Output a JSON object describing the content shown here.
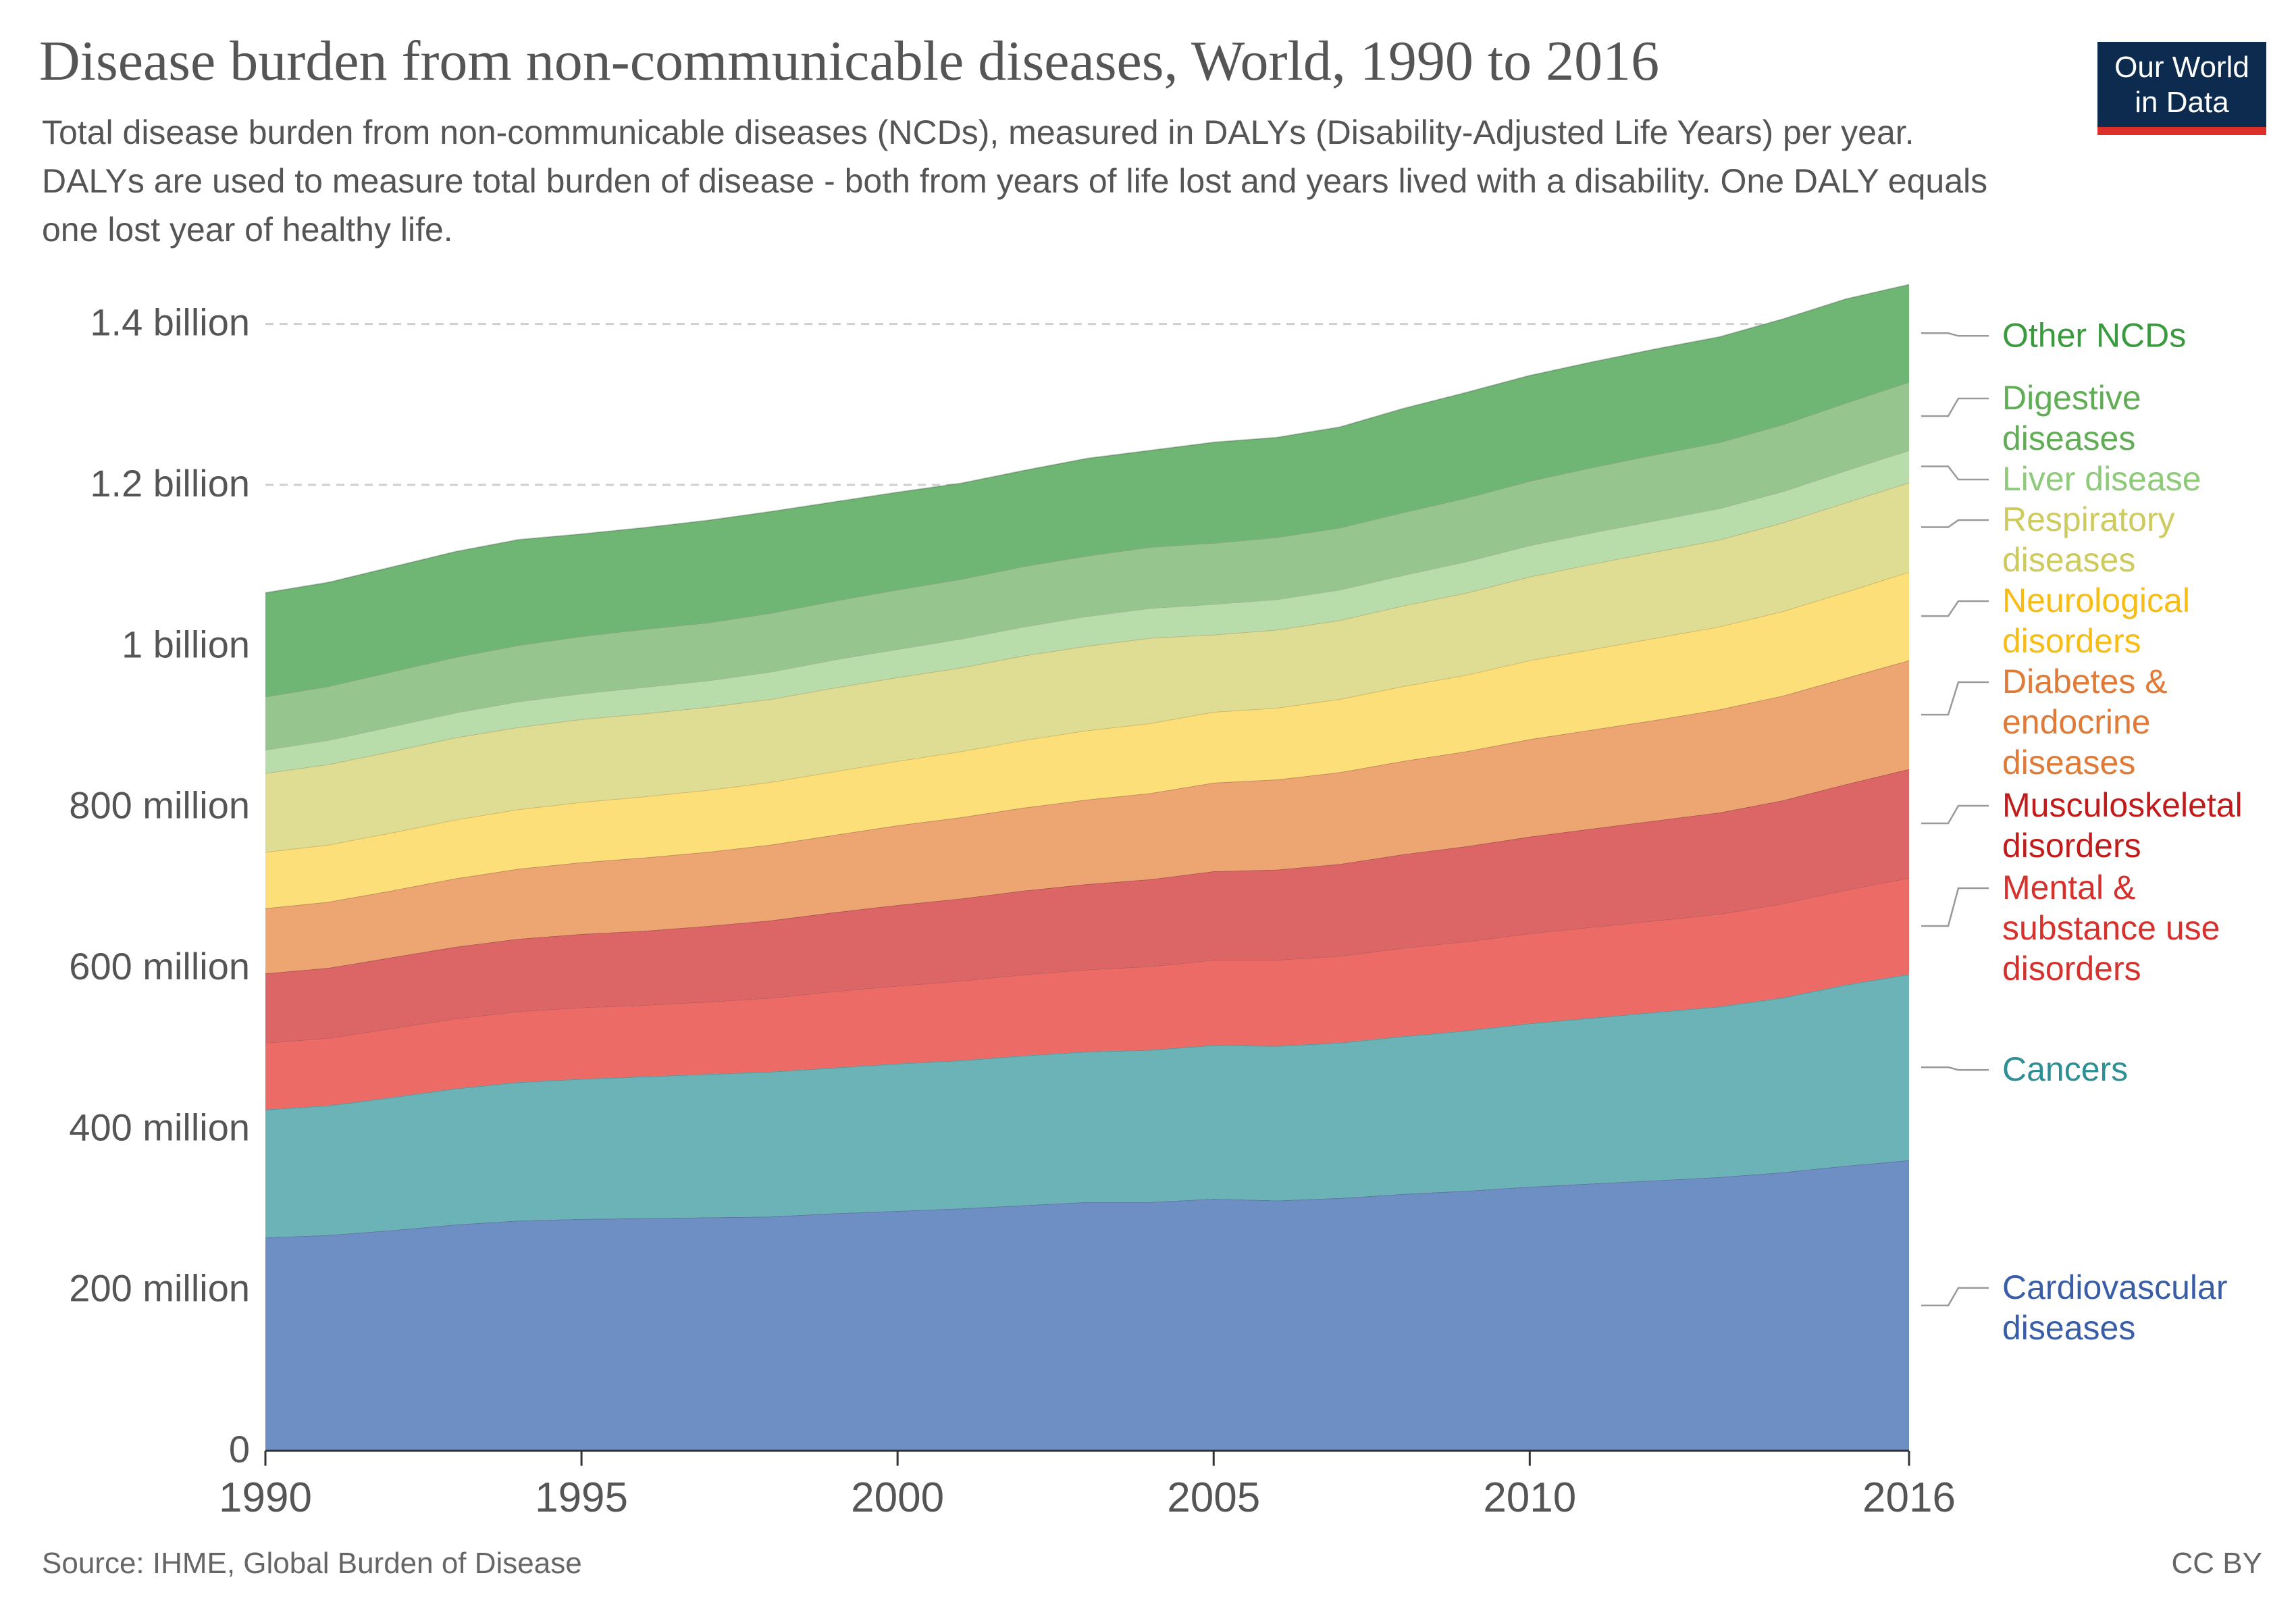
{
  "header": {
    "title": "Disease burden from non-communicable diseases, World, 1990 to 2016",
    "subtitle": "Total disease burden from non-communicable diseases (NCDs), measured in DALYs (Disability-Adjusted Life Years) per year. DALYs are used to measure total burden of disease - both from years of life lost and years lived with a disability. One DALY equals one lost year of healthy life.",
    "logo_line1": "Our World",
    "logo_line2": "in Data"
  },
  "footer": {
    "source": "Source: IHME, Global Burden of Disease",
    "license": "CC BY"
  },
  "chart_data": {
    "type": "area",
    "stacked": true,
    "title": "Disease burden from non-communicable diseases, World, 1990 to 2016",
    "xlabel": "",
    "ylabel": "",
    "x": [
      1990,
      1991,
      1992,
      1993,
      1994,
      1995,
      1996,
      1997,
      1998,
      1999,
      2000,
      2001,
      2002,
      2003,
      2004,
      2005,
      2006,
      2007,
      2008,
      2009,
      2010,
      2011,
      2012,
      2013,
      2014,
      2015,
      2016
    ],
    "x_ticks": [
      1990,
      1995,
      2000,
      2005,
      2010,
      2016
    ],
    "ylim": [
      0,
      1450000000
    ],
    "y_ticks": [
      {
        "value": 0,
        "label": "0"
      },
      {
        "value": 200000000,
        "label": "200 million"
      },
      {
        "value": 400000000,
        "label": "400 million"
      },
      {
        "value": 600000000,
        "label": "600 million"
      },
      {
        "value": 800000000,
        "label": "800 million"
      },
      {
        "value": 1000000000,
        "label": "1 billion"
      },
      {
        "value": 1200000000,
        "label": "1.2 billion"
      },
      {
        "value": 1400000000,
        "label": "1.4 billion"
      }
    ],
    "grid": "horizontal-dashed",
    "legend": "right, labels aligned to series",
    "series": [
      {
        "name": "Cardiovascular diseases",
        "label_lines": [
          "Cardiovascular",
          "diseases"
        ],
        "color": "#6e8fc4",
        "label_color": "#3a5da8",
        "values": [
          265000000.0,
          268000000.0,
          274000000.0,
          281000000.0,
          286000000.0,
          288000000.0,
          289000000.0,
          290000000.0,
          291000000.0,
          295000000.0,
          298000000.0,
          301000000.0,
          305000000.0,
          309000000.0,
          309000000.0,
          313000000.0,
          311000000.0,
          314000000.0,
          319000000.0,
          323000000.0,
          328000000.0,
          332000000.0,
          336000000.0,
          340000000.0,
          346000000.0,
          354000000.0,
          361000000.0
        ]
      },
      {
        "name": "Cancers",
        "label_lines": [
          "Cancers"
        ],
        "color": "#6bb3b7",
        "label_color": "#2e8f94",
        "values": [
          159000000.0,
          161000000.0,
          165000000.0,
          169000000.0,
          172000000.0,
          174000000.0,
          176000000.0,
          178000000.0,
          180000000.0,
          181000000.0,
          183000000.0,
          184000000.0,
          186000000.0,
          187000000.0,
          189000000.0,
          191000000.0,
          192000000.0,
          193000000.0,
          196000000.0,
          199000000.0,
          203000000.0,
          206000000.0,
          209000000.0,
          212000000.0,
          217000000.0,
          225000000.0,
          231000000.0
        ]
      },
      {
        "name": "Mental & substance use disorders",
        "label_lines": [
          "Mental &",
          "substance use",
          "disorders"
        ],
        "color": "#ec6b67",
        "label_color": "#d5322e",
        "values": [
          83000000.0,
          84000000.0,
          86000000.0,
          87000000.0,
          88000000.0,
          89000000.0,
          89000000.0,
          90000000.0,
          92000000.0,
          95000000.0,
          97000000.0,
          99000000.0,
          101000000.0,
          102000000.0,
          104000000.0,
          106000000.0,
          107000000.0,
          108000000.0,
          110000000.0,
          111000000.0,
          112000000.0,
          113000000.0,
          114000000.0,
          115000000.0,
          117000000.0,
          118000000.0,
          120000000.0
        ]
      },
      {
        "name": "Musculoskeletal disorders",
        "label_lines": [
          "Musculoskeletal",
          "disorders"
        ],
        "color": "#db6665",
        "label_color": "#c01c1c",
        "values": [
          86000000.0,
          87000000.0,
          88000000.0,
          89000000.0,
          90000000.0,
          91000000.0,
          92000000.0,
          94000000.0,
          96000000.0,
          98000000.0,
          100000000.0,
          102000000.0,
          104000000.0,
          106000000.0,
          108000000.0,
          110000000.0,
          112000000.0,
          114000000.0,
          116000000.0,
          118000000.0,
          120000000.0,
          122000000.0,
          124000000.0,
          126000000.0,
          128000000.0,
          131000000.0,
          135000000.0
        ]
      },
      {
        "name": "Diabetes & endocrine diseases",
        "label_lines": [
          "Diabetes &",
          "endocrine",
          "diseases"
        ],
        "color": "#eda571",
        "label_color": "#e07a37",
        "values": [
          81000000.0,
          82000000.0,
          83000000.0,
          85000000.0,
          87000000.0,
          89000000.0,
          91000000.0,
          92000000.0,
          94000000.0,
          96000000.0,
          99000000.0,
          101000000.0,
          103000000.0,
          105000000.0,
          107000000.0,
          110000000.0,
          112000000.0,
          114000000.0,
          116000000.0,
          118000000.0,
          121000000.0,
          123000000.0,
          125000000.0,
          128000000.0,
          130000000.0,
          132000000.0,
          135000000.0
        ]
      },
      {
        "name": "Neurological disorders",
        "label_lines": [
          "Neurological",
          "disorders"
        ],
        "color": "#fddf7a",
        "label_color": "#f8bd15",
        "values": [
          70000000.0,
          71000000.0,
          72000000.0,
          73000000.0,
          74000000.0,
          75000000.0,
          76000000.0,
          77000000.0,
          78000000.0,
          79000000.0,
          80000000.0,
          82000000.0,
          84000000.0,
          86000000.0,
          87000000.0,
          88000000.0,
          89000000.0,
          91000000.0,
          93000000.0,
          95000000.0,
          98000000.0,
          100000000.0,
          102000000.0,
          103000000.0,
          105000000.0,
          107000000.0,
          110000000.0
        ]
      },
      {
        "name": "Respiratory diseases",
        "label_lines": [
          "Respiratory",
          "diseases"
        ],
        "color": "#dedd93",
        "label_color": "#cdcb5e",
        "values": [
          98000000.0,
          100000000.0,
          101000000.0,
          102000000.0,
          102000000.0,
          103000000.0,
          103000000.0,
          103000000.0,
          103000000.0,
          104000000.0,
          104000000.0,
          104000000.0,
          105000000.0,
          105000000.0,
          106000000.0,
          96000000.0,
          97000000.0,
          98000000.0,
          100000000.0,
          102000000.0,
          104000000.0,
          106000000.0,
          107000000.0,
          108000000.0,
          110000000.0,
          111000000.0,
          111000000.0
        ]
      },
      {
        "name": "Liver disease",
        "label_lines": [
          "Liver disease"
        ],
        "color": "#b9dcab",
        "label_color": "#8fca7b",
        "values": [
          29000000.0,
          30000000.0,
          31000000.0,
          31000000.0,
          32000000.0,
          32000000.0,
          33000000.0,
          33000000.0,
          34000000.0,
          35000000.0,
          35000000.0,
          36000000.0,
          36000000.0,
          37000000.0,
          37000000.0,
          38000000.0,
          38000000.0,
          38000000.0,
          38000000.0,
          39000000.0,
          39000000.0,
          39000000.0,
          39000000.0,
          39000000.0,
          39000000.0,
          40000000.0,
          40000000.0
        ]
      },
      {
        "name": "Digestive diseases",
        "label_lines": [
          "Digestive",
          "diseases"
        ],
        "color": "#96c68e",
        "label_color": "#61ad56",
        "values": [
          66000000.0,
          67000000.0,
          68000000.0,
          69000000.0,
          70000000.0,
          71000000.0,
          72000000.0,
          72000000.0,
          73000000.0,
          73000000.0,
          74000000.0,
          74000000.0,
          75000000.0,
          75000000.0,
          76000000.0,
          76000000.0,
          77000000.0,
          77000000.0,
          78000000.0,
          79000000.0,
          80000000.0,
          81000000.0,
          82000000.0,
          82000000.0,
          83000000.0,
          84000000.0,
          85000000.0
        ]
      },
      {
        "name": "Other NCDs",
        "label_lines": [
          "Other NCDs"
        ],
        "color": "#6fb574",
        "label_color": "#3a9a3e",
        "values": [
          129000000.0,
          129000000.0,
          130000000.0,
          131000000.0,
          131000000.0,
          127000000.0,
          126000000.0,
          127000000.0,
          126000000.0,
          123000000.0,
          121000000.0,
          119000000.0,
          119000000.0,
          121000000.0,
          120000000.0,
          125000000.0,
          124000000.0,
          125000000.0,
          129000000.0,
          131000000.0,
          131000000.0,
          131000000.0,
          131000000.0,
          131000000.0,
          131000000.0,
          129000000.0,
          121000000.0
        ]
      }
    ]
  }
}
